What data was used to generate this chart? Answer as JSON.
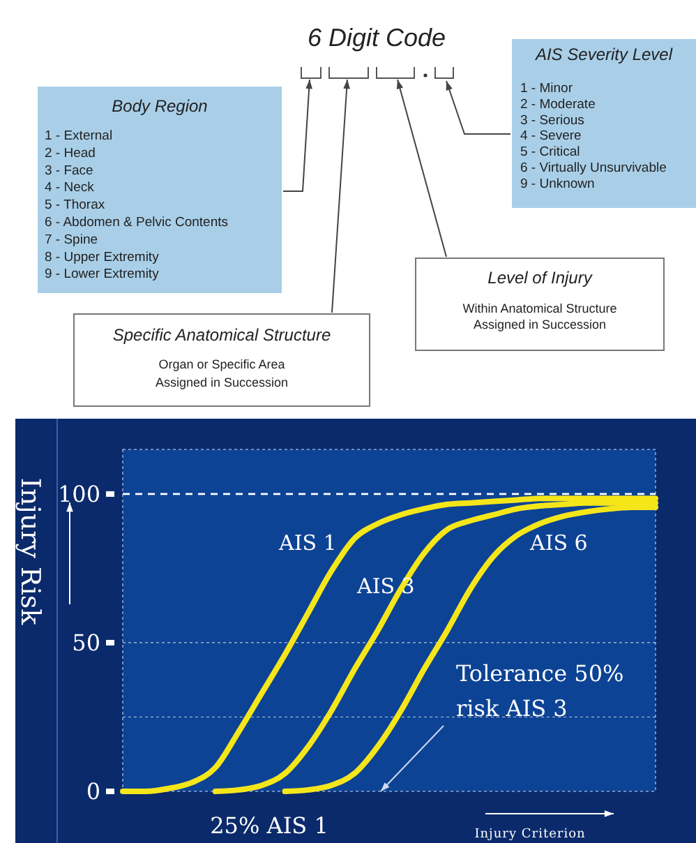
{
  "chart_data": [
    {
      "type": "other",
      "title": "6 Digit Code",
      "annotations": [
        "Body Region",
        "1 - External",
        "2 - Head",
        "3 - Face",
        "4 - Neck",
        "5 - Thorax",
        "6 - Abdomen & Pelvic Contents",
        "7 - Spine",
        "8 - Upper Extremity",
        "9 - Lower Extremity",
        "AIS Severity Level",
        "1 - Minor",
        "2 - Moderate",
        "3 - Serious",
        "4 - Severe",
        "5 - Critical",
        "6 - Virtually Unsurvivable",
        "9 - Unknown",
        "Level of Injury",
        "Within Anatomical Structure",
        "Assigned in Succession",
        "Specific Anatomical Structure",
        "Organ or Specific Area",
        "Assigned in Succession"
      ]
    },
    {
      "type": "line",
      "ylabel": "Injury Risk",
      "xlabel": "Injury Criterion",
      "categories": [
        null,
        null,
        null,
        null,
        null,
        null,
        null,
        null,
        null,
        null,
        null,
        null,
        null,
        null,
        null,
        null,
        null,
        null,
        null,
        null,
        null,
        null,
        null,
        null
      ],
      "series": [
        {
          "name": "AIS 1",
          "color": "#f5e61a",
          "values": [
            0,
            0,
            1,
            3,
            8,
            20,
            33,
            46,
            60,
            74,
            85,
            90,
            93,
            95,
            96.5,
            97,
            97.5,
            98,
            98.5,
            98.5,
            98.5,
            98.5,
            98.5,
            98.5
          ]
        },
        {
          "name": "AIS 3",
          "color": "#f5e61a",
          "values": [
            null,
            null,
            null,
            null,
            0,
            0.5,
            2,
            6,
            15,
            27,
            41,
            54,
            68,
            80,
            88,
            91,
            93,
            95,
            96,
            96.5,
            97,
            97,
            97,
            97
          ]
        },
        {
          "name": "AIS 6",
          "color": "#f5e61a",
          "values": [
            null,
            null,
            null,
            null,
            null,
            null,
            null,
            0,
            0.5,
            2,
            6,
            15,
            27,
            41,
            54,
            68,
            79,
            86,
            90,
            92.5,
            94,
            95,
            95.5,
            95.5
          ]
        }
      ],
      "ylim": [
        0,
        115
      ],
      "yticks": [
        0,
        50,
        100
      ],
      "grid": false,
      "marker": "none",
      "line_style": "solid",
      "ref_lines": [
        {
          "axis": "y",
          "value": 100,
          "line_style": "dashed"
        },
        {
          "axis": "y",
          "value": 50,
          "line_style": "dotted"
        },
        {
          "axis": "y",
          "value": 25,
          "line_style": "dotted"
        }
      ],
      "annotations": [
        "25% AIS 1",
        "Tolerance 50%\nrisk AIS 3"
      ]
    }
  ]
}
